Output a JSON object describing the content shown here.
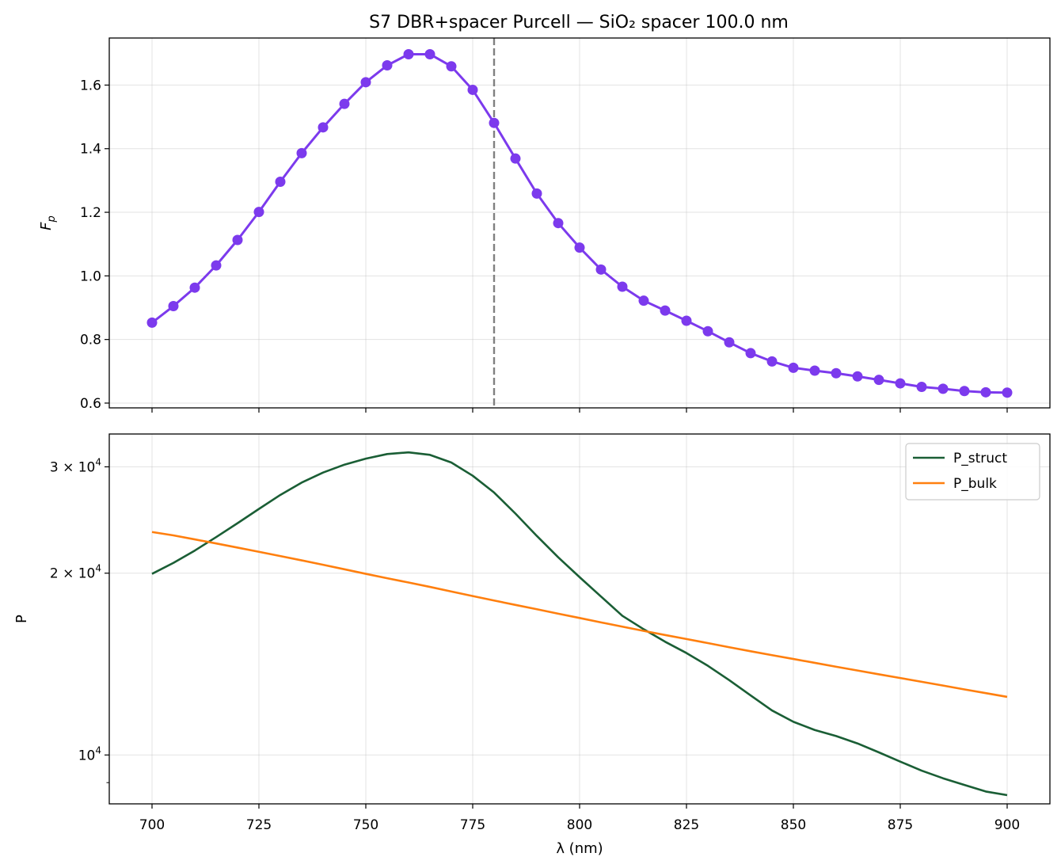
{
  "title": "S7 DBR+spacer Purcell — SiO₂ spacer 100.0 nm",
  "chart_data": [
    {
      "type": "line",
      "markers": true,
      "ylabel_main": "F",
      "ylabel_sub": "p",
      "xlabel": "",
      "x": [
        700,
        705,
        710,
        715,
        720,
        725,
        730,
        735,
        740,
        745,
        750,
        755,
        760,
        765,
        770,
        775,
        780,
        785,
        790,
        795,
        800,
        805,
        810,
        815,
        820,
        825,
        830,
        835,
        840,
        845,
        850,
        855,
        860,
        865,
        870,
        875,
        880,
        885,
        890,
        895,
        900
      ],
      "series": [
        {
          "color": "#7c3aed",
          "values": [
            0.853,
            0.905,
            0.963,
            1.033,
            1.113,
            1.201,
            1.296,
            1.386,
            1.467,
            1.541,
            1.609,
            1.662,
            1.697,
            1.697,
            1.659,
            1.585,
            1.481,
            1.369,
            1.259,
            1.166,
            1.089,
            1.02,
            0.966,
            0.922,
            0.891,
            0.859,
            0.826,
            0.791,
            0.757,
            0.731,
            0.711,
            0.702,
            0.694,
            0.684,
            0.673,
            0.662,
            0.651,
            0.645,
            0.638,
            0.634,
            0.633
          ]
        }
      ],
      "xlim": [
        690,
        910
      ],
      "ylim": [
        0.585,
        1.748
      ],
      "xticks": [
        700,
        725,
        750,
        775,
        800,
        825,
        850,
        875,
        900
      ],
      "yticks": [
        0.6,
        0.8,
        1.0,
        1.2,
        1.4,
        1.6
      ],
      "ytick_labels": [
        "0.6",
        "0.8",
        "1.0",
        "1.2",
        "1.4",
        "1.6"
      ],
      "vline": {
        "x": 780,
        "color": "#808080",
        "style": "dashed"
      },
      "grid": true
    },
    {
      "type": "line",
      "ylabel": "P",
      "xlabel": "λ (nm)",
      "yscale": "log",
      "x": [
        700,
        705,
        710,
        715,
        720,
        725,
        730,
        735,
        740,
        745,
        750,
        755,
        760,
        765,
        770,
        775,
        780,
        785,
        790,
        795,
        800,
        805,
        810,
        815,
        820,
        825,
        830,
        835,
        840,
        845,
        850,
        855,
        860,
        865,
        870,
        875,
        880,
        885,
        890,
        895,
        900
      ],
      "series": [
        {
          "name": "P_struct",
          "color": "#1a5e35",
          "values": [
            19950,
            20800,
            21800,
            22950,
            24200,
            25550,
            26950,
            28250,
            29350,
            30250,
            30950,
            31500,
            31700,
            31400,
            30500,
            29000,
            27200,
            25100,
            23050,
            21250,
            19700,
            18300,
            17000,
            16150,
            15400,
            14750,
            14050,
            13300,
            12550,
            11850,
            11350,
            11000,
            10750,
            10450,
            10100,
            9750,
            9420,
            9150,
            8920,
            8700,
            8580
          ],
          "legend_label": "P_struct"
        },
        {
          "name": "P_bulk",
          "color": "#ff7f0e",
          "values": [
            23400,
            23100,
            22750,
            22400,
            22050,
            21700,
            21350,
            21000,
            20650,
            20300,
            19950,
            19620,
            19300,
            18980,
            18650,
            18330,
            18020,
            17720,
            17430,
            17140,
            16860,
            16580,
            16310,
            16050,
            15800,
            15560,
            15320,
            15080,
            14850,
            14630,
            14420,
            14210,
            14000,
            13800,
            13600,
            13410,
            13220,
            13030,
            12840,
            12660,
            12480
          ],
          "legend_label": "P_bulk"
        }
      ],
      "xlim": [
        690,
        910
      ],
      "ylim": [
        8300,
        34000
      ],
      "xticks": [
        700,
        725,
        750,
        775,
        800,
        825,
        850,
        875,
        900
      ],
      "xtick_labels": [
        "700",
        "725",
        "750",
        "775",
        "800",
        "825",
        "850",
        "875",
        "900"
      ],
      "yticks_major": [
        10000,
        20000,
        30000
      ],
      "ytick_labels": [
        {
          "mant": "10",
          "exp": "4"
        },
        {
          "mant": "2 × 10",
          "exp": "4"
        },
        {
          "mant": "3 × 10",
          "exp": "4"
        }
      ],
      "legend_position": "upper right",
      "grid": true
    }
  ]
}
